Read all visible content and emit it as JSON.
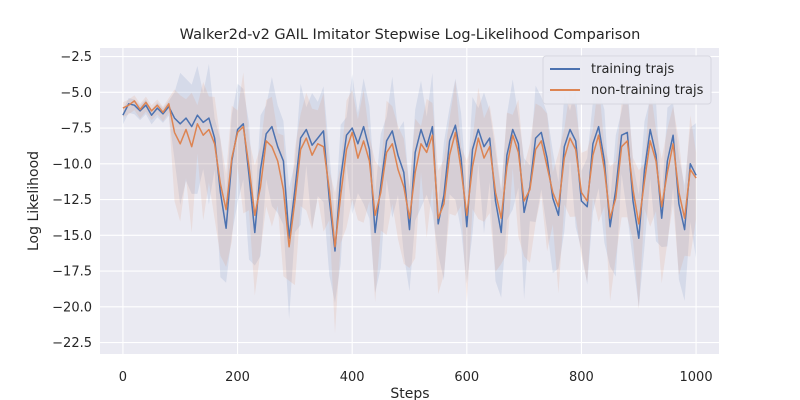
{
  "chart_data": {
    "type": "line",
    "title": "Walker2d-v2 GAIL Imitator Stepwise Log-Likelihood Comparison",
    "xlabel": "Steps",
    "ylabel": "Log Likelihood",
    "xlim": [
      -40,
      1040
    ],
    "ylim": [
      -23.3,
      -1.9
    ],
    "xticks": [
      0,
      200,
      400,
      600,
      800,
      1000
    ],
    "xtick_labels": [
      "0",
      "200",
      "400",
      "600",
      "800",
      "1000"
    ],
    "yticks": [
      -2.5,
      -5.0,
      -7.5,
      -10.0,
      -12.5,
      -15.0,
      -17.5,
      -20.0,
      -22.5
    ],
    "ytick_labels": [
      "−2.5",
      "−5.0",
      "−7.5",
      "−10.0",
      "−12.5",
      "−15.0",
      "−17.5",
      "−20.0",
      "−22.5"
    ],
    "grid": true,
    "legend_position": "top-right",
    "colors": {
      "background": "#eaeaf2",
      "grid": "#ffffff",
      "training": "#4c72b0",
      "non_training": "#dd8452"
    },
    "series": [
      {
        "name": "training trajs",
        "color": "#4c72b0",
        "points": [
          [
            0,
            -6.6
          ],
          [
            10,
            -5.8
          ],
          [
            20,
            -5.9
          ],
          [
            30,
            -6.3
          ],
          [
            40,
            -5.9
          ],
          [
            50,
            -6.6
          ],
          [
            60,
            -6.1
          ],
          [
            70,
            -6.5
          ],
          [
            80,
            -6.0
          ],
          [
            90,
            -6.8
          ],
          [
            100,
            -7.2
          ],
          [
            110,
            -6.8
          ],
          [
            120,
            -7.4
          ],
          [
            130,
            -6.6
          ],
          [
            140,
            -7.1
          ],
          [
            150,
            -6.8
          ],
          [
            160,
            -8.2
          ],
          [
            170,
            -12.0
          ],
          [
            180,
            -14.5
          ],
          [
            190,
            -9.8
          ],
          [
            200,
            -7.6
          ],
          [
            210,
            -7.2
          ],
          [
            220,
            -10.8
          ],
          [
            230,
            -14.8
          ],
          [
            240,
            -10.4
          ],
          [
            250,
            -7.9
          ],
          [
            260,
            -7.4
          ],
          [
            270,
            -8.8
          ],
          [
            280,
            -9.8
          ],
          [
            290,
            -15.2
          ],
          [
            300,
            -11.8
          ],
          [
            310,
            -8.2
          ],
          [
            320,
            -7.6
          ],
          [
            330,
            -8.7
          ],
          [
            340,
            -8.2
          ],
          [
            350,
            -7.7
          ],
          [
            360,
            -12.5
          ],
          [
            370,
            -16.1
          ],
          [
            380,
            -11.0
          ],
          [
            390,
            -8.0
          ],
          [
            400,
            -7.5
          ],
          [
            410,
            -8.6
          ],
          [
            420,
            -7.4
          ],
          [
            430,
            -9.0
          ],
          [
            440,
            -14.8
          ],
          [
            450,
            -11.5
          ],
          [
            460,
            -8.4
          ],
          [
            470,
            -7.7
          ],
          [
            480,
            -9.4
          ],
          [
            490,
            -10.6
          ],
          [
            500,
            -14.6
          ],
          [
            510,
            -9.2
          ],
          [
            520,
            -7.6
          ],
          [
            530,
            -8.8
          ],
          [
            540,
            -7.4
          ],
          [
            550,
            -14.2
          ],
          [
            560,
            -12.2
          ],
          [
            570,
            -8.4
          ],
          [
            580,
            -7.3
          ],
          [
            590,
            -9.6
          ],
          [
            600,
            -14.4
          ],
          [
            610,
            -9.0
          ],
          [
            620,
            -7.6
          ],
          [
            630,
            -8.8
          ],
          [
            640,
            -8.2
          ],
          [
            650,
            -12.6
          ],
          [
            660,
            -14.8
          ],
          [
            670,
            -9.4
          ],
          [
            680,
            -7.6
          ],
          [
            690,
            -8.6
          ],
          [
            700,
            -13.4
          ],
          [
            710,
            -11.6
          ],
          [
            720,
            -8.2
          ],
          [
            730,
            -7.8
          ],
          [
            740,
            -9.6
          ],
          [
            750,
            -12.4
          ],
          [
            760,
            -13.6
          ],
          [
            770,
            -8.8
          ],
          [
            780,
            -7.6
          ],
          [
            790,
            -8.4
          ],
          [
            800,
            -12.6
          ],
          [
            810,
            -13.0
          ],
          [
            820,
            -8.6
          ],
          [
            830,
            -7.4
          ],
          [
            840,
            -9.8
          ],
          [
            850,
            -14.4
          ],
          [
            860,
            -11.8
          ],
          [
            870,
            -8.0
          ],
          [
            880,
            -7.8
          ],
          [
            890,
            -12.6
          ],
          [
            900,
            -15.2
          ],
          [
            910,
            -10.4
          ],
          [
            920,
            -7.6
          ],
          [
            930,
            -9.4
          ],
          [
            940,
            -13.8
          ],
          [
            950,
            -9.8
          ],
          [
            960,
            -8.0
          ],
          [
            970,
            -12.8
          ],
          [
            980,
            -14.6
          ],
          [
            990,
            -10.0
          ],
          [
            1000,
            -10.8
          ]
        ]
      },
      {
        "name": "non-training trajs",
        "color": "#dd8452",
        "points": [
          [
            0,
            -6.1
          ],
          [
            10,
            -5.9
          ],
          [
            20,
            -5.6
          ],
          [
            30,
            -6.2
          ],
          [
            40,
            -5.7
          ],
          [
            50,
            -6.3
          ],
          [
            60,
            -5.9
          ],
          [
            70,
            -6.4
          ],
          [
            80,
            -5.8
          ],
          [
            90,
            -7.8
          ],
          [
            100,
            -8.6
          ],
          [
            110,
            -7.6
          ],
          [
            120,
            -8.8
          ],
          [
            130,
            -7.2
          ],
          [
            140,
            -8.0
          ],
          [
            150,
            -7.6
          ],
          [
            160,
            -8.6
          ],
          [
            170,
            -11.4
          ],
          [
            180,
            -13.2
          ],
          [
            190,
            -9.6
          ],
          [
            200,
            -7.8
          ],
          [
            210,
            -7.4
          ],
          [
            220,
            -10.2
          ],
          [
            230,
            -13.6
          ],
          [
            240,
            -11.6
          ],
          [
            250,
            -8.4
          ],
          [
            260,
            -8.8
          ],
          [
            270,
            -9.8
          ],
          [
            280,
            -11.8
          ],
          [
            290,
            -15.8
          ],
          [
            300,
            -12.6
          ],
          [
            310,
            -9.0
          ],
          [
            320,
            -8.2
          ],
          [
            330,
            -9.4
          ],
          [
            340,
            -8.6
          ],
          [
            350,
            -8.8
          ],
          [
            360,
            -11.8
          ],
          [
            370,
            -15.8
          ],
          [
            380,
            -12.2
          ],
          [
            390,
            -9.0
          ],
          [
            400,
            -7.8
          ],
          [
            410,
            -9.6
          ],
          [
            420,
            -8.4
          ],
          [
            430,
            -9.8
          ],
          [
            440,
            -13.6
          ],
          [
            450,
            -12.0
          ],
          [
            460,
            -9.2
          ],
          [
            470,
            -8.6
          ],
          [
            480,
            -10.4
          ],
          [
            490,
            -11.6
          ],
          [
            500,
            -13.8
          ],
          [
            510,
            -10.6
          ],
          [
            520,
            -8.6
          ],
          [
            530,
            -9.2
          ],
          [
            540,
            -8.0
          ],
          [
            550,
            -13.8
          ],
          [
            560,
            -12.8
          ],
          [
            570,
            -9.4
          ],
          [
            580,
            -7.8
          ],
          [
            590,
            -10.4
          ],
          [
            600,
            -13.6
          ],
          [
            610,
            -10.2
          ],
          [
            620,
            -8.2
          ],
          [
            630,
            -9.6
          ],
          [
            640,
            -8.8
          ],
          [
            650,
            -12.0
          ],
          [
            660,
            -13.8
          ],
          [
            670,
            -10.2
          ],
          [
            680,
            -8.0
          ],
          [
            690,
            -9.2
          ],
          [
            700,
            -12.6
          ],
          [
            710,
            -11.8
          ],
          [
            720,
            -9.0
          ],
          [
            730,
            -8.4
          ],
          [
            740,
            -10.2
          ],
          [
            750,
            -12.0
          ],
          [
            760,
            -13.0
          ],
          [
            770,
            -9.6
          ],
          [
            780,
            -8.2
          ],
          [
            790,
            -9.0
          ],
          [
            800,
            -12.0
          ],
          [
            810,
            -12.6
          ],
          [
            820,
            -9.4
          ],
          [
            830,
            -8.0
          ],
          [
            840,
            -10.4
          ],
          [
            850,
            -13.8
          ],
          [
            860,
            -12.4
          ],
          [
            870,
            -8.8
          ],
          [
            880,
            -8.4
          ],
          [
            890,
            -11.8
          ],
          [
            900,
            -14.2
          ],
          [
            910,
            -11.2
          ],
          [
            920,
            -8.4
          ],
          [
            930,
            -9.8
          ],
          [
            940,
            -13.0
          ],
          [
            950,
            -10.6
          ],
          [
            960,
            -8.6
          ],
          [
            970,
            -12.0
          ],
          [
            980,
            -13.8
          ],
          [
            990,
            -10.4
          ],
          [
            1000,
            -11.0
          ]
        ]
      }
    ]
  }
}
